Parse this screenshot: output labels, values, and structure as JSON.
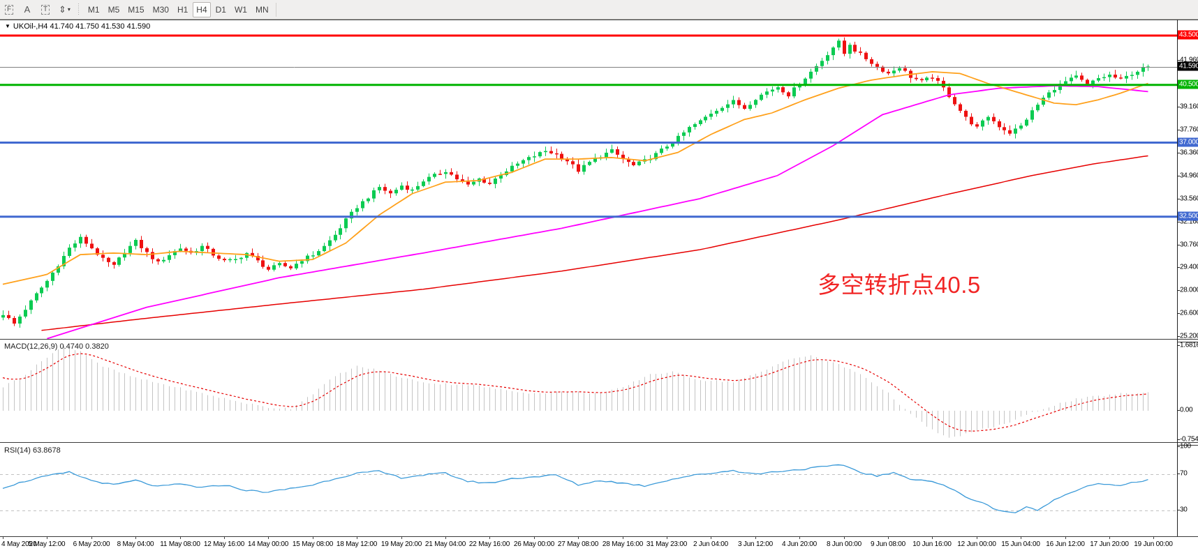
{
  "toolbar": {
    "tools": [
      {
        "name": "figures-tool",
        "glyph": "F"
      },
      {
        "name": "insert-text-tool",
        "glyph": "A"
      },
      {
        "name": "text-label-tool",
        "glyph": "T"
      },
      {
        "name": "cursor-tool",
        "glyph": "⇕",
        "caret": "▾"
      }
    ],
    "timeframes": [
      "M1",
      "M5",
      "M15",
      "M30",
      "H1",
      "H4",
      "D1",
      "W1",
      "MN"
    ],
    "active_timeframe": "H4"
  },
  "chart": {
    "title_triangle": "▼",
    "symbol_line": "UKOil-,H4  41.740 41.750 41.530 41.590",
    "annotation": {
      "text": "多空转折点40.5",
      "color": "#f12525"
    }
  },
  "macd_panel": {
    "label": "MACD(12,26,9) 0.4740 0.3820"
  },
  "rsi_panel": {
    "label": "RSI(14) 63.8678"
  },
  "colors": {
    "bull_candle": "#0ccb52",
    "bear_candle": "#ee1111",
    "ma_fast_orange": "#ffa11c",
    "ma_mid_magenta": "#ff00ff",
    "ma_slow_red": "#e60000",
    "hline_red": "#ff0000",
    "hline_green": "#00b300",
    "hline_blue": "#4169d0",
    "current_price_line": "#808080",
    "macd_histogram": "#c4c4c4",
    "macd_signal": "#e60000",
    "rsi_line": "#3d9bd9",
    "rsi_levels": "#c0c0c0",
    "toolbar_bg": "#f0efee"
  },
  "chart_data": {
    "type": "candlestick",
    "symbol": "UKOil-",
    "period": "H4",
    "bars": 208,
    "ylim": [
      25.2,
      43.5
    ],
    "grid": false,
    "price_ticks": [
      {
        "v": 41.96,
        "label": "41.960"
      },
      {
        "v": 39.16,
        "label": "39.160"
      },
      {
        "v": 37.76,
        "label": "37.760"
      },
      {
        "v": 36.36,
        "label": "36.360"
      },
      {
        "v": 34.96,
        "label": "34.960"
      },
      {
        "v": 33.56,
        "label": "33.560"
      },
      {
        "v": 32.16,
        "label": "32.160"
      },
      {
        "v": 30.76,
        "label": "30.760"
      },
      {
        "v": 29.4,
        "label": "29.400"
      },
      {
        "v": 28.0,
        "label": "28.000"
      },
      {
        "v": 26.6,
        "label": "26.600"
      },
      {
        "v": 25.2,
        "label": "25.200"
      }
    ],
    "hlines": [
      {
        "v": 43.5,
        "label": "43.500",
        "color": "#ff0000",
        "width": 3
      },
      {
        "v": 40.5,
        "label": "40.500",
        "color": "#00b300",
        "width": 3
      },
      {
        "v": 37.0,
        "label": "37.000",
        "color": "#4169d0",
        "width": 3
      },
      {
        "v": 32.5,
        "label": "32.500",
        "color": "#4169d0",
        "width": 3
      }
    ],
    "current_price": {
      "v": 41.59,
      "label": "41.590",
      "box": "#000000",
      "line": "#808080"
    },
    "close_keyframes": [
      [
        0,
        26.6
      ],
      [
        2,
        26.0
      ],
      [
        4,
        26.9
      ],
      [
        6,
        27.8
      ],
      [
        8,
        28.6
      ],
      [
        10,
        29.6
      ],
      [
        12,
        30.6
      ],
      [
        14,
        31.2
      ],
      [
        16,
        30.6
      ],
      [
        18,
        29.9
      ],
      [
        20,
        29.5
      ],
      [
        22,
        30.4
      ],
      [
        24,
        31.0
      ],
      [
        26,
        30.3
      ],
      [
        28,
        29.7
      ],
      [
        30,
        30.2
      ],
      [
        32,
        30.6
      ],
      [
        34,
        30.3
      ],
      [
        36,
        30.7
      ],
      [
        38,
        30.2
      ],
      [
        40,
        29.8
      ],
      [
        42,
        29.9
      ],
      [
        44,
        30.3
      ],
      [
        46,
        29.8
      ],
      [
        48,
        29.3
      ],
      [
        50,
        29.6
      ],
      [
        52,
        29.4
      ],
      [
        54,
        29.9
      ],
      [
        56,
        30.2
      ],
      [
        58,
        30.7
      ],
      [
        60,
        31.4
      ],
      [
        62,
        32.3
      ],
      [
        64,
        33.1
      ],
      [
        66,
        33.7
      ],
      [
        68,
        34.3
      ],
      [
        70,
        33.9
      ],
      [
        72,
        34.4
      ],
      [
        74,
        34.1
      ],
      [
        76,
        34.7
      ],
      [
        78,
        35.0
      ],
      [
        80,
        35.3
      ],
      [
        82,
        34.8
      ],
      [
        84,
        34.4
      ],
      [
        86,
        34.8
      ],
      [
        88,
        34.5
      ],
      [
        90,
        35.1
      ],
      [
        92,
        35.5
      ],
      [
        94,
        35.9
      ],
      [
        96,
        36.2
      ],
      [
        98,
        36.5
      ],
      [
        100,
        36.3
      ],
      [
        102,
        35.9
      ],
      [
        104,
        35.3
      ],
      [
        106,
        35.8
      ],
      [
        108,
        36.2
      ],
      [
        110,
        36.5
      ],
      [
        112,
        36.0
      ],
      [
        114,
        35.6
      ],
      [
        116,
        35.9
      ],
      [
        118,
        36.3
      ],
      [
        120,
        36.8
      ],
      [
        122,
        37.3
      ],
      [
        124,
        37.9
      ],
      [
        126,
        38.3
      ],
      [
        128,
        38.8
      ],
      [
        130,
        39.2
      ],
      [
        132,
        39.5
      ],
      [
        134,
        39.1
      ],
      [
        136,
        39.7
      ],
      [
        138,
        40.1
      ],
      [
        140,
        40.4
      ],
      [
        142,
        39.9
      ],
      [
        144,
        40.6
      ],
      [
        146,
        41.3
      ],
      [
        148,
        42.0
      ],
      [
        150,
        42.8
      ],
      [
        151,
        43.1
      ],
      [
        152,
        42.4
      ],
      [
        153,
        43.0
      ],
      [
        154,
        42.6
      ],
      [
        156,
        42.1
      ],
      [
        158,
        41.6
      ],
      [
        160,
        41.2
      ],
      [
        162,
        41.6
      ],
      [
        164,
        41.0
      ],
      [
        166,
        40.7
      ],
      [
        168,
        41.0
      ],
      [
        170,
        40.3
      ],
      [
        172,
        39.4
      ],
      [
        174,
        38.5
      ],
      [
        176,
        37.9
      ],
      [
        178,
        38.6
      ],
      [
        180,
        38.0
      ],
      [
        182,
        37.6
      ],
      [
        184,
        38.0
      ],
      [
        186,
        38.9
      ],
      [
        188,
        39.7
      ],
      [
        190,
        40.3
      ],
      [
        192,
        40.7
      ],
      [
        194,
        41.0
      ],
      [
        196,
        40.5
      ],
      [
        198,
        40.9
      ],
      [
        200,
        41.1
      ],
      [
        202,
        40.8
      ],
      [
        204,
        41.2
      ],
      [
        206,
        41.5
      ],
      [
        207,
        41.59
      ]
    ],
    "ma_orange_keyframes": [
      [
        0,
        28.4
      ],
      [
        8,
        29.0
      ],
      [
        14,
        30.2
      ],
      [
        20,
        30.3
      ],
      [
        26,
        30.2
      ],
      [
        32,
        30.4
      ],
      [
        38,
        30.3
      ],
      [
        44,
        30.2
      ],
      [
        50,
        29.8
      ],
      [
        56,
        29.9
      ],
      [
        62,
        30.9
      ],
      [
        68,
        32.6
      ],
      [
        74,
        33.9
      ],
      [
        80,
        34.6
      ],
      [
        86,
        34.7
      ],
      [
        92,
        35.2
      ],
      [
        98,
        36.0
      ],
      [
        104,
        36.0
      ],
      [
        110,
        36.1
      ],
      [
        116,
        35.9
      ],
      [
        122,
        36.4
      ],
      [
        128,
        37.5
      ],
      [
        134,
        38.4
      ],
      [
        139,
        38.8
      ],
      [
        145,
        39.6
      ],
      [
        151,
        40.3
      ],
      [
        157,
        40.8
      ],
      [
        163,
        41.1
      ],
      [
        168,
        41.3
      ],
      [
        173,
        41.2
      ],
      [
        178,
        40.6
      ],
      [
        184,
        40.0
      ],
      [
        190,
        39.4
      ],
      [
        194,
        39.3
      ],
      [
        198,
        39.6
      ],
      [
        202,
        40.0
      ],
      [
        207,
        40.6
      ]
    ],
    "ma_magenta_keyframes": [
      [
        8,
        25.1
      ],
      [
        26,
        27.0
      ],
      [
        50,
        28.8
      ],
      [
        76,
        30.3
      ],
      [
        101,
        31.8
      ],
      [
        126,
        33.6
      ],
      [
        140,
        35.0
      ],
      [
        150,
        36.8
      ],
      [
        159,
        38.7
      ],
      [
        171,
        39.9
      ],
      [
        180,
        40.3
      ],
      [
        190,
        40.45
      ],
      [
        198,
        40.4
      ],
      [
        204,
        40.2
      ],
      [
        207,
        40.1
      ]
    ],
    "ma_red_keyframes": [
      [
        7,
        25.6
      ],
      [
        25,
        26.3
      ],
      [
        50,
        27.2
      ],
      [
        76,
        28.1
      ],
      [
        101,
        29.2
      ],
      [
        126,
        30.5
      ],
      [
        151,
        32.3
      ],
      [
        170,
        33.8
      ],
      [
        186,
        35.0
      ],
      [
        197,
        35.7
      ],
      [
        207,
        36.2
      ]
    ],
    "macd": {
      "label": "MACD(12,26,9) 0.4740 0.3820",
      "main_value": 0.474,
      "signal_value": 0.382,
      "axis_ticks": [
        {
          "v": 1.6816,
          "label": "1.6816"
        },
        {
          "v": 0.0,
          "label": "0.00"
        },
        {
          "v": -0.754,
          "label": "-0.754"
        }
      ],
      "keyframes": [
        [
          0,
          0.62
        ],
        [
          4,
          0.95
        ],
        [
          8,
          1.4
        ],
        [
          11,
          1.68
        ],
        [
          14,
          1.55
        ],
        [
          18,
          1.15
        ],
        [
          24,
          0.85
        ],
        [
          30,
          0.65
        ],
        [
          36,
          0.45
        ],
        [
          42,
          0.25
        ],
        [
          48,
          0.08
        ],
        [
          52,
          0.06
        ],
        [
          56,
          0.45
        ],
        [
          60,
          0.9
        ],
        [
          64,
          1.15
        ],
        [
          68,
          1.05
        ],
        [
          72,
          0.85
        ],
        [
          78,
          0.7
        ],
        [
          84,
          0.68
        ],
        [
          90,
          0.55
        ],
        [
          96,
          0.45
        ],
        [
          102,
          0.5
        ],
        [
          108,
          0.45
        ],
        [
          112,
          0.6
        ],
        [
          117,
          0.95
        ],
        [
          121,
          1.0
        ],
        [
          126,
          0.8
        ],
        [
          132,
          0.75
        ],
        [
          137,
          1.0
        ],
        [
          142,
          1.35
        ],
        [
          146,
          1.42
        ],
        [
          150,
          1.25
        ],
        [
          155,
          0.95
        ],
        [
          160,
          0.45
        ],
        [
          164,
          -0.1
        ],
        [
          168,
          -0.5
        ],
        [
          171,
          -0.72
        ],
        [
          174,
          -0.6
        ],
        [
          178,
          -0.45
        ],
        [
          182,
          -0.3
        ],
        [
          186,
          -0.05
        ],
        [
          190,
          0.15
        ],
        [
          194,
          0.3
        ],
        [
          198,
          0.38
        ],
        [
          202,
          0.44
        ],
        [
          207,
          0.474
        ]
      ]
    },
    "rsi": {
      "label": "RSI(14) 63.8678",
      "value": 63.8678,
      "axis_ticks": [
        {
          "v": 100,
          "label": "100"
        },
        {
          "v": 70,
          "label": "70"
        },
        {
          "v": 30,
          "label": "30"
        }
      ],
      "levels": [
        70,
        30
      ],
      "keyframes": [
        [
          0,
          55
        ],
        [
          4,
          62
        ],
        [
          8,
          68
        ],
        [
          12,
          72
        ],
        [
          16,
          63
        ],
        [
          20,
          58
        ],
        [
          24,
          63
        ],
        [
          28,
          56
        ],
        [
          32,
          59
        ],
        [
          36,
          55
        ],
        [
          40,
          58
        ],
        [
          44,
          52
        ],
        [
          48,
          50
        ],
        [
          52,
          54
        ],
        [
          56,
          58
        ],
        [
          60,
          65
        ],
        [
          64,
          71
        ],
        [
          68,
          73
        ],
        [
          72,
          66
        ],
        [
          76,
          69
        ],
        [
          80,
          71
        ],
        [
          84,
          62
        ],
        [
          88,
          60
        ],
        [
          92,
          65
        ],
        [
          96,
          67
        ],
        [
          100,
          69
        ],
        [
          104,
          58
        ],
        [
          108,
          63
        ],
        [
          112,
          60
        ],
        [
          116,
          57
        ],
        [
          120,
          63
        ],
        [
          124,
          68
        ],
        [
          128,
          71
        ],
        [
          132,
          74
        ],
        [
          136,
          70
        ],
        [
          140,
          73
        ],
        [
          144,
          75
        ],
        [
          148,
          78
        ],
        [
          152,
          80
        ],
        [
          155,
          72
        ],
        [
          158,
          68
        ],
        [
          161,
          71
        ],
        [
          164,
          65
        ],
        [
          168,
          62
        ],
        [
          171,
          55
        ],
        [
          174,
          45
        ],
        [
          177,
          38
        ],
        [
          180,
          30
        ],
        [
          183,
          27
        ],
        [
          185,
          34
        ],
        [
          187,
          29
        ],
        [
          189,
          38
        ],
        [
          192,
          47
        ],
        [
          195,
          55
        ],
        [
          198,
          60
        ],
        [
          200,
          58
        ],
        [
          202,
          57
        ],
        [
          204,
          60
        ],
        [
          207,
          63.87
        ]
      ]
    },
    "time_labels": [
      "4 May 2020",
      "5 May 12:00",
      "6 May 20:00",
      "8 May 04:00",
      "11 May 08:00",
      "12 May 16:00",
      "14 May 00:00",
      "15 May 08:00",
      "18 May 12:00",
      "19 May 20:00",
      "21 May 04:00",
      "22 May 16:00",
      "26 May 00:00",
      "27 May 08:00",
      "28 May 16:00",
      "31 May 23:00",
      "2 Jun 04:00",
      "3 Jun 12:00",
      "4 Jun 20:00",
      "8 Jun 00:00",
      "9 Jun 08:00",
      "10 Jun 16:00",
      "12 Jun 00:00",
      "15 Jun 04:00",
      "16 Jun 12:00",
      "17 Jun 20:00",
      "19 Jun 00:00"
    ]
  }
}
